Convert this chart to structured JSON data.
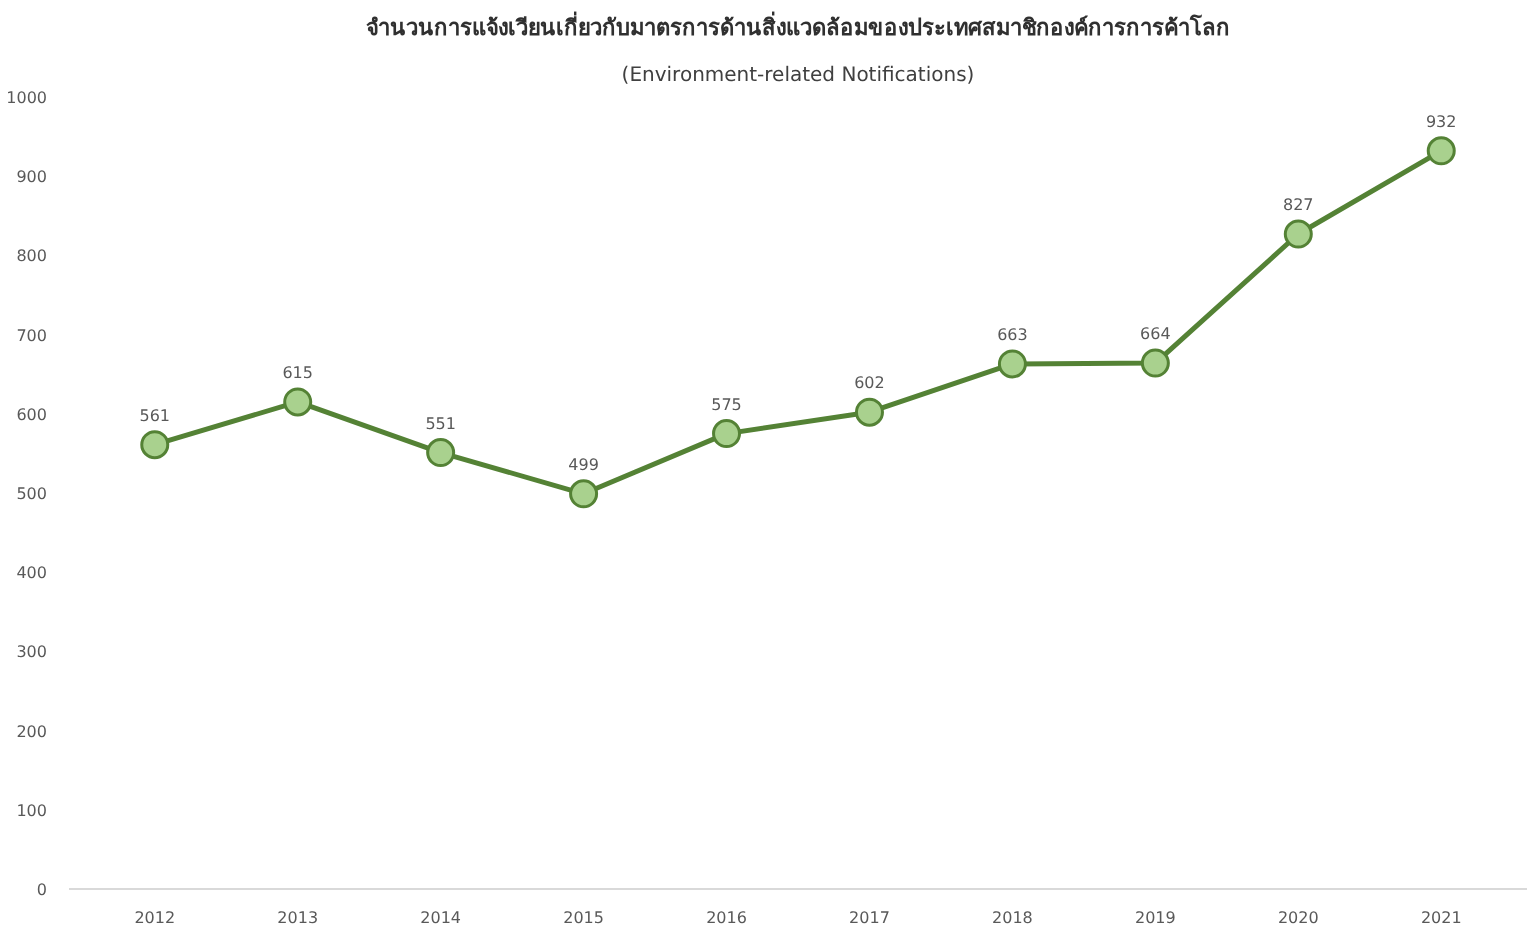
{
  "chart_data": {
    "type": "line",
    "title": "จำนวนการแจ้งเวียนเกี่ยวกับมาตรการด้านสิ่งแวดล้อมของประเทศสมาชิกองค์การการค้าโลก",
    "subtitle": "(Environment-related Notifications)",
    "categories": [
      "2012",
      "2013",
      "2014",
      "2015",
      "2016",
      "2017",
      "2018",
      "2019",
      "2020",
      "2021"
    ],
    "series": [
      {
        "color": "#548235",
        "values": [
          561,
          615,
          551,
          499,
          575,
          602,
          663,
          664,
          827,
          932
        ]
      }
    ],
    "ylim": [
      0,
      1000
    ],
    "yticks": [
      0,
      100,
      200,
      300,
      400,
      500,
      600,
      700,
      800,
      900,
      1000
    ],
    "data_labels": true,
    "marker": "circle",
    "line_style": "solid",
    "grid": false
  }
}
